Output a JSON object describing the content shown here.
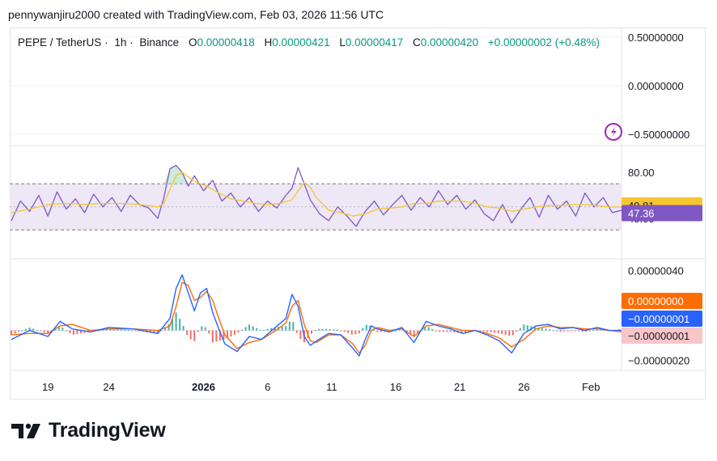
{
  "credit": "pennywanjiru2000 created with TradingView.com, Feb 03, 2026 11:56 UTC",
  "brand": {
    "name": "TradingView",
    "logo_icon": "tradingview-logo-icon"
  },
  "colors": {
    "up": "#089981",
    "down": "#f23645",
    "rsi_line": "#7e57c2",
    "rsi_ma": "#f7c531",
    "macd_line": "#2962ff",
    "signal_line": "#ff6d00",
    "hist_pos": "#26a69a",
    "hist_neg": "#ef5350",
    "rsi_band": "#ede7f6"
  },
  "chart_data": [
    {
      "type": "candlestick",
      "pane": "price",
      "symbol": "PEPE / TetherUS",
      "interval": "1h",
      "exchange": "Binance",
      "ohlc": {
        "open_label": "O",
        "open": "0.00000418",
        "high_label": "H",
        "high": "0.00000421",
        "low_label": "L",
        "low": "0.00000417",
        "close_label": "C",
        "close": "0.00000420",
        "change": "+0.00000002 (+0.48%)"
      },
      "y_ticks": [
        "0.50000000",
        "0.00000000",
        "−0.50000000"
      ],
      "ylim": [
        -0.5,
        0.5
      ],
      "alert_icon": "lightning-icon"
    },
    {
      "type": "line",
      "pane": "RSI",
      "ylim": [
        30,
        90
      ],
      "band": [
        70,
        30
      ],
      "midline": 50,
      "y_ticks": [
        "80.00",
        "40.00"
      ],
      "last_rsi_ma": "49.81",
      "last_rsi": "47.36",
      "series": [
        {
          "role": "rsi",
          "x": [
            0,
            1.5,
            3,
            4.5,
            6,
            7.5,
            9,
            10.5,
            12,
            13.5,
            15,
            16.5,
            18,
            19.5,
            21,
            22.5,
            24,
            25,
            26,
            27,
            28,
            29,
            30,
            31.5,
            33,
            34.5,
            36,
            37.5,
            39,
            40.5,
            42,
            43.5,
            45,
            46,
            47,
            48,
            49,
            50.5,
            52,
            53.5,
            55,
            56.5,
            58,
            59.5,
            61,
            62.5,
            64,
            65.5,
            67,
            68.5,
            70,
            71.5,
            73,
            74.5,
            76,
            77.5,
            79,
            80.5,
            82,
            83.5,
            85,
            86.5,
            88,
            89.5,
            91,
            92.5,
            94,
            95.5,
            97,
            98.5,
            100
          ],
          "values": [
            38,
            55,
            46,
            60,
            42,
            63,
            48,
            57,
            45,
            61,
            50,
            58,
            46,
            60,
            52,
            49,
            40,
            58,
            83,
            86,
            80,
            68,
            77,
            64,
            73,
            55,
            62,
            50,
            58,
            46,
            55,
            49,
            60,
            66,
            84,
            70,
            56,
            44,
            38,
            50,
            42,
            33,
            46,
            55,
            43,
            52,
            60,
            47,
            58,
            50,
            64,
            52,
            60,
            48,
            56,
            44,
            38,
            52,
            36,
            48,
            58,
            41,
            60,
            48,
            55,
            42,
            62,
            50,
            58,
            45,
            47
          ]
        },
        {
          "role": "rsi_ma",
          "x": [
            0,
            3,
            6,
            9,
            12,
            15,
            18,
            21,
            24,
            25,
            26,
            27,
            28,
            29,
            30,
            32,
            34,
            36,
            38,
            40,
            42,
            44,
            46,
            47,
            48,
            49,
            50,
            52,
            54,
            56,
            58,
            60,
            62,
            64,
            66,
            68,
            70,
            72,
            74,
            76,
            78,
            80,
            82,
            84,
            86,
            88,
            90,
            92,
            94,
            96,
            98,
            100
          ],
          "values": [
            45,
            48,
            52,
            53,
            52,
            53,
            53,
            52,
            50,
            53,
            65,
            77,
            80,
            76,
            72,
            68,
            62,
            57,
            55,
            53,
            52,
            53,
            56,
            64,
            71,
            67,
            58,
            47,
            45,
            42,
            44,
            48,
            49,
            50,
            53,
            53,
            55,
            55,
            55,
            53,
            50,
            49,
            46,
            48,
            50,
            51,
            51,
            52,
            52,
            51,
            50,
            49.8
          ]
        }
      ]
    },
    {
      "type": "line",
      "pane": "MACD",
      "ylim": [
        -2.5e-07,
        4.5e-07
      ],
      "y_ticks": [
        "0.00000040",
        "−0.00000020"
      ],
      "last_macd": "0.00000000",
      "last_signal": "−0.00000001",
      "last_histogram": "−0.00000001",
      "series": [
        {
          "role": "macd",
          "x": [
            0,
            3,
            6,
            8,
            10,
            13,
            16,
            20,
            24,
            26,
            27,
            28,
            29,
            30,
            31,
            32,
            33,
            34,
            35,
            37,
            39,
            41,
            43,
            45,
            46,
            47,
            48,
            49,
            50,
            52,
            54,
            56,
            57,
            58,
            59,
            60,
            62,
            64,
            66,
            68,
            70,
            72,
            74,
            76,
            78,
            80,
            82,
            84,
            86,
            88,
            90,
            92,
            94,
            96,
            98,
            100
          ],
          "values": [
            -6e-08,
            0,
            -4e-08,
            6e-08,
            1e-08,
            -1e-08,
            2e-08,
            1e-08,
            -2e-08,
            8e-08,
            2.8e-07,
            3.7e-07,
            2.5e-07,
            1.3e-07,
            2.5e-07,
            2.8e-07,
            1.2e-07,
            1e-08,
            -9e-08,
            -1.4e-07,
            -4e-08,
            -6e-08,
            1e-08,
            8e-08,
            2.4e-07,
            1.6e-07,
            -4e-08,
            -1e-07,
            -7e-08,
            -2e-08,
            -3e-08,
            -1.2e-07,
            -1.7e-07,
            -6e-08,
            3e-08,
            1e-08,
            -1e-08,
            2e-08,
            -8e-08,
            6e-08,
            3e-08,
            1e-08,
            -2e-08,
            0,
            -3e-08,
            -7e-08,
            -1.5e-07,
            -2e-08,
            3e-08,
            4e-08,
            1e-08,
            2e-08,
            0,
            2e-08,
            0,
            0
          ]
        },
        {
          "role": "signal",
          "x": [
            0,
            3,
            6,
            8,
            10,
            13,
            16,
            20,
            24,
            26,
            27,
            28,
            29,
            30,
            31,
            32,
            33,
            34,
            35,
            37,
            39,
            41,
            43,
            45,
            46,
            47,
            48,
            49,
            50,
            52,
            54,
            56,
            57,
            58,
            59,
            60,
            62,
            64,
            66,
            68,
            70,
            72,
            74,
            76,
            78,
            80,
            82,
            84,
            86,
            88,
            90,
            92,
            94,
            96,
            98,
            100
          ],
          "values": [
            -3e-08,
            -2e-08,
            -2e-08,
            3e-08,
            4e-08,
            0,
            1e-08,
            1e-08,
            0,
            3e-08,
            1.6e-07,
            3.2e-07,
            3e-07,
            2e-07,
            2.2e-07,
            2.6e-07,
            2e-07,
            8e-08,
            -3e-08,
            -1.2e-07,
            -8e-08,
            -6e-08,
            -1e-08,
            5e-08,
            1.6e-07,
            2e-07,
            4e-08,
            -7e-08,
            -8e-08,
            -3e-08,
            -3e-08,
            -9e-08,
            -1.5e-07,
            -1e-07,
            0,
            2e-08,
            0,
            1e-08,
            -4e-08,
            3e-08,
            4e-08,
            2e-08,
            0,
            0,
            -2e-08,
            -5e-08,
            -1.1e-07,
            -6e-08,
            1e-08,
            3e-08,
            2e-08,
            2e-08,
            1e-08,
            1e-08,
            0,
            -1e-08
          ]
        }
      ]
    }
  ],
  "x_axis_labels": [
    "19",
    "24",
    "2026",
    "6",
    "11",
    "16",
    "21",
    "26",
    "Feb"
  ],
  "x_axis_positions": [
    6,
    16,
    31.5,
    42,
    52.5,
    63,
    73.5,
    84,
    95
  ]
}
